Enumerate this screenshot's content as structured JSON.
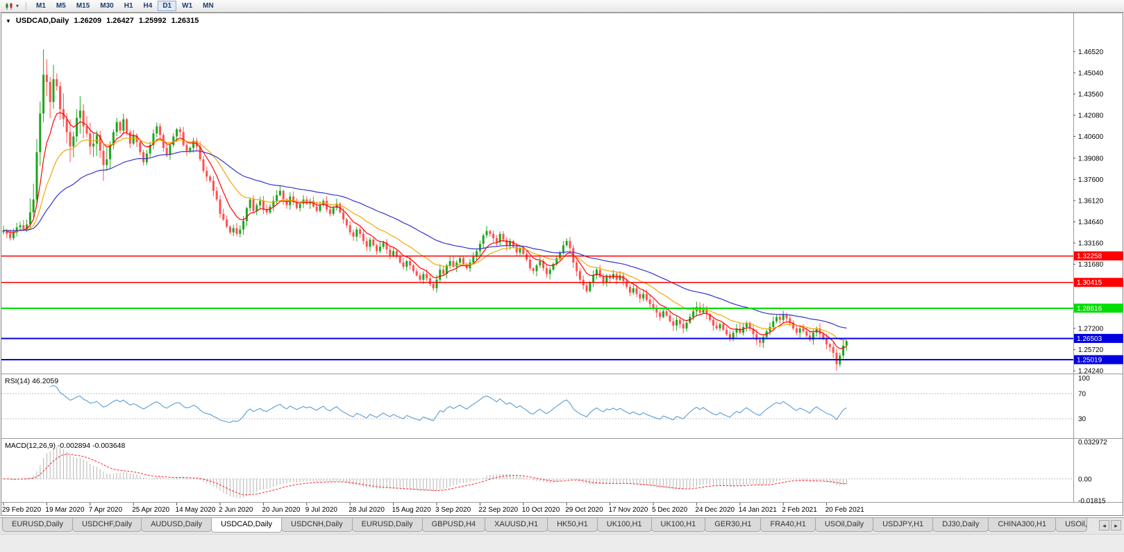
{
  "toolbar": {
    "timeframes": [
      "M1",
      "M5",
      "M15",
      "M30",
      "H1",
      "H4",
      "D1",
      "W1",
      "MN"
    ],
    "active_timeframe": "D1"
  },
  "chart_header": {
    "collapse_icon": "▼",
    "symbol": "USDCAD,Daily",
    "open": "1.26209",
    "high": "1.26427",
    "low": "1.25992",
    "close": "1.26315"
  },
  "chart_data": {
    "type": "candlestick",
    "symbol": "USDCAD",
    "timeframe": "Daily",
    "x_labels": [
      "29 Feb 2020",
      "19 Mar 2020",
      "7 Apr 2020",
      "25 Apr 2020",
      "14 May 2020",
      "2 Jun 2020",
      "20 Jun 2020",
      "9 Jul 2020",
      "28 Jul 2020",
      "15 Aug 2020",
      "3 Sep 2020",
      "22 Sep 2020",
      "10 Oct 2020",
      "29 Oct 2020",
      "17 Nov 2020",
      "5 Dec 2020",
      "24 Dec 2020",
      "14 Jan 2021",
      "2 Feb 2021",
      "20 Feb 2021"
    ],
    "candles_per_label": 13,
    "y_axis": {
      "min": 1.241,
      "max": 1.4915,
      "labels": [
        "1.46520",
        "1.45040",
        "1.43560",
        "1.42080",
        "1.40600",
        "1.39080",
        "1.37600",
        "1.36120",
        "1.34640",
        "1.33160",
        "1.31680",
        "1.27200",
        "1.25720",
        "1.24240"
      ]
    },
    "closes": [
      1.3405,
      1.338,
      1.335,
      1.339,
      1.3425,
      1.344,
      1.3415,
      1.3445,
      1.353,
      1.362,
      1.395,
      1.422,
      1.449,
      1.444,
      1.43,
      1.446,
      1.441,
      1.425,
      1.418,
      1.409,
      1.399,
      1.406,
      1.419,
      1.424,
      1.413,
      1.408,
      1.399,
      1.401,
      1.407,
      1.396,
      1.386,
      1.39,
      1.4,
      1.409,
      1.416,
      1.41,
      1.418,
      1.409,
      1.401,
      1.407,
      1.402,
      1.395,
      1.388,
      1.394,
      1.4,
      1.408,
      1.413,
      1.407,
      1.398,
      1.393,
      1.4,
      1.406,
      1.411,
      1.409,
      1.4,
      1.396,
      1.398,
      1.403,
      1.399,
      1.39,
      1.382,
      1.378,
      1.375,
      1.368,
      1.362,
      1.352,
      1.348,
      1.343,
      1.339,
      1.342,
      1.338,
      1.341,
      1.347,
      1.356,
      1.362,
      1.354,
      1.358,
      1.361,
      1.355,
      1.353,
      1.357,
      1.361,
      1.365,
      1.368,
      1.362,
      1.358,
      1.364,
      1.36,
      1.356,
      1.359,
      1.362,
      1.359,
      1.361,
      1.357,
      1.354,
      1.358,
      1.361,
      1.355,
      1.352,
      1.356,
      1.359,
      1.353,
      1.348,
      1.344,
      1.339,
      1.336,
      1.341,
      1.338,
      1.333,
      1.329,
      1.334,
      1.33,
      1.326,
      1.329,
      1.332,
      1.327,
      1.323,
      1.326,
      1.322,
      1.318,
      1.315,
      1.319,
      1.316,
      1.312,
      1.309,
      1.306,
      1.31,
      1.307,
      1.303,
      1.3,
      1.306,
      1.313,
      1.31,
      1.316,
      1.319,
      1.315,
      1.318,
      1.321,
      1.317,
      1.314,
      1.318,
      1.322,
      1.326,
      1.331,
      1.337,
      1.34,
      1.338,
      1.335,
      1.332,
      1.338,
      1.334,
      1.33,
      1.333,
      1.329,
      1.325,
      1.328,
      1.324,
      1.32,
      1.314,
      1.312,
      1.316,
      1.319,
      1.314,
      1.31,
      1.313,
      1.317,
      1.321,
      1.325,
      1.33,
      1.333,
      1.328,
      1.318,
      1.312,
      1.306,
      1.302,
      1.298,
      1.304,
      1.309,
      1.313,
      1.308,
      1.304,
      1.309,
      1.307,
      1.31,
      1.306,
      1.309,
      1.305,
      1.301,
      1.297,
      1.3,
      1.296,
      1.293,
      1.296,
      1.292,
      1.289,
      1.286,
      1.283,
      1.28,
      1.284,
      1.281,
      1.277,
      1.274,
      1.278,
      1.275,
      1.272,
      1.276,
      1.28,
      1.284,
      1.287,
      1.283,
      1.286,
      1.282,
      1.278,
      1.274,
      1.272,
      1.275,
      1.271,
      1.268,
      1.265,
      1.269,
      1.272,
      1.269,
      1.273,
      1.276,
      1.272,
      1.268,
      1.264,
      1.262,
      1.266,
      1.27,
      1.273,
      1.277,
      1.28,
      1.278,
      1.282,
      1.279,
      1.276,
      1.272,
      1.269,
      1.272,
      1.27,
      1.267,
      1.264,
      1.269,
      1.272,
      1.268,
      1.265,
      1.261,
      1.259,
      1.255,
      1.247,
      1.253,
      1.26,
      1.26315
    ],
    "wick_overrides": [
      {
        "index": 12,
        "high": 1.4668
      },
      {
        "index": 250,
        "low": 1.2425
      }
    ],
    "up_color": "#1CA51C",
    "down_color": "#FF5050",
    "moving_averages": [
      {
        "period": 8,
        "color": "#FF0000"
      },
      {
        "period": 20,
        "color": "#F2A800"
      },
      {
        "period": 50,
        "color": "#3333CC"
      }
    ],
    "h_lines": [
      {
        "price": 1.32258,
        "label": "1.32258",
        "color": "#FF0000",
        "width": 1.4
      },
      {
        "price": 1.30415,
        "label": "1.30415",
        "color": "#FF0000",
        "width": 1.4
      },
      {
        "price": 1.28616,
        "label": "1.28616",
        "color": "#00DD00",
        "width": 2
      },
      {
        "price": 1.26503,
        "label": "1.26503",
        "color": "#0000E0",
        "width": 2
      },
      {
        "price": 1.25019,
        "label": "1.25019",
        "color": "#0000E0",
        "width": 2
      }
    ],
    "rsi_panel": {
      "label": "RSI(14) 46.2059",
      "period": 14,
      "current": 46.2059,
      "line_color": "#5A9BD4",
      "levels": [
        {
          "v": 100,
          "label": "100",
          "line": false
        },
        {
          "v": 70,
          "label": "70",
          "line": true
        },
        {
          "v": 30,
          "label": "30",
          "line": true
        }
      ]
    },
    "macd_panel": {
      "label": "MACD(12,26,9) -0.002894 -0.003648",
      "fast": 12,
      "slow": 26,
      "signal": 9,
      "current_macd": -0.002894,
      "current_signal": -0.003648,
      "max": 0.032972,
      "min": -0.01815,
      "hist_color": "#B4B4B4",
      "signal_color": "#FF2020",
      "axis_labels": [
        {
          "v": 0.032972,
          "label": "0.032972"
        },
        {
          "v": 0,
          "label": "0.00"
        },
        {
          "v": -0.01815,
          "label": "-0.01815"
        }
      ]
    }
  },
  "tab_bar": {
    "scroll_left": "◂",
    "scroll_right": "▸",
    "tabs": [
      {
        "label": "EURUSD,Daily",
        "active": false
      },
      {
        "label": "USDCHF,Daily",
        "active": false
      },
      {
        "label": "AUDUSD,Daily",
        "active": false
      },
      {
        "label": "USDCAD,Daily",
        "active": true
      },
      {
        "label": "USDCNH,Daily",
        "active": false
      },
      {
        "label": "EURUSD,Daily",
        "active": false
      },
      {
        "label": "GBPUSD,H4",
        "active": false
      },
      {
        "label": "XAUUSD,H1",
        "active": false
      },
      {
        "label": "HK50,H1",
        "active": false
      },
      {
        "label": "UK100,H1",
        "active": false
      },
      {
        "label": "UK100,H1",
        "active": false
      },
      {
        "label": "GER30,H1",
        "active": false
      },
      {
        "label": "FRA40,H1",
        "active": false
      },
      {
        "label": "USOil,Daily",
        "active": false
      },
      {
        "label": "USDJPY,H1",
        "active": false
      },
      {
        "label": "DJ30,Daily",
        "active": false
      },
      {
        "label": "CHINA300,H1",
        "active": false
      },
      {
        "label": "USOil,",
        "active": false
      }
    ]
  }
}
